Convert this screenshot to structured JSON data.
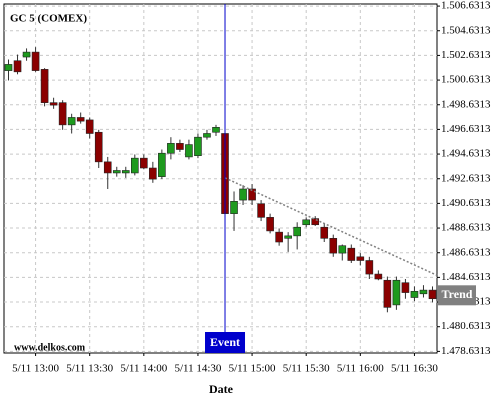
{
  "chart_data": {
    "type": "candlestick",
    "title": "GC 5 (COMEX)",
    "x_label": "Date",
    "watermark": "www.delkos.com",
    "categories": [
      null,
      null,
      null,
      "5/11 13:00",
      null,
      null,
      null,
      null,
      null,
      "5/11 13:30",
      null,
      null,
      null,
      null,
      null,
      "5/11 14:00",
      null,
      null,
      null,
      null,
      null,
      "5/11 14:30",
      null,
      null,
      null,
      null,
      null,
      "5/11 15:00",
      null,
      null,
      null,
      null,
      null,
      "5/11 15:30",
      null,
      null,
      null,
      null,
      null,
      "5/11 16:00",
      null,
      null,
      null,
      null,
      null,
      "5/11 16:30",
      null,
      null
    ],
    "open": [
      1501.4,
      1502.2,
      1502.5,
      1502.9,
      1501.5,
      1498.8,
      1498.8,
      1497.0,
      1497.6,
      1497.4,
      1496.4,
      1494.0,
      1493.1,
      1493.1,
      1493.1,
      1494.3,
      1493.5,
      1492.8,
      1494.7,
      1495.5,
      1494.4,
      1494.5,
      1496.0,
      1496.4,
      1496.3,
      1489.8,
      1490.9,
      1491.8,
      1490.6,
      1489.5,
      1488.3,
      1487.8,
      1488.0,
      1488.9,
      1489.4,
      1488.7,
      1487.8,
      1486.6,
      1487.0,
      1486.3,
      1486.0,
      1484.9,
      1484.4,
      1482.4,
      1484.2,
      1483.0,
      1483.3,
      1483.6
    ],
    "high": [
      1502.3,
      1502.7,
      1503.2,
      1503.3,
      1501.6,
      1499.2,
      1499.0,
      1497.9,
      1498.0,
      1497.6,
      1496.6,
      1494.4,
      1493.6,
      1493.6,
      1494.6,
      1494.6,
      1494.0,
      1495.0,
      1496.0,
      1495.8,
      1495.8,
      1496.3,
      1496.6,
      1497.0,
      1496.6,
      1491.6,
      1492.1,
      1492.2,
      1490.9,
      1489.8,
      1488.6,
      1488.3,
      1489.1,
      1489.5,
      1489.6,
      1489.0,
      1488.1,
      1487.3,
      1487.3,
      1486.6,
      1486.3,
      1485.2,
      1484.7,
      1484.7,
      1484.5,
      1483.9,
      1484.0,
      1483.9
    ],
    "low": [
      1500.6,
      1501.1,
      1502.2,
      1501.3,
      1498.5,
      1498.3,
      1496.6,
      1496.3,
      1497.1,
      1495.9,
      1493.5,
      1491.8,
      1492.8,
      1492.7,
      1492.9,
      1493.4,
      1492.3,
      1492.6,
      1494.2,
      1494.8,
      1494.2,
      1494.3,
      1495.8,
      1496.1,
      1489.5,
      1488.4,
      1490.5,
      1490.5,
      1489.2,
      1488.2,
      1487.2,
      1486.7,
      1486.9,
      1488.7,
      1488.8,
      1487.5,
      1486.3,
      1486.0,
      1485.8,
      1485.6,
      1484.5,
      1484.4,
      1481.8,
      1482.0,
      1482.9,
      1482.7,
      1483.0,
      1482.6
    ],
    "close": [
      1501.9,
      1501.3,
      1502.9,
      1501.4,
      1498.8,
      1498.6,
      1497.0,
      1497.6,
      1497.3,
      1496.3,
      1494.0,
      1493.1,
      1493.3,
      1493.3,
      1494.3,
      1493.5,
      1492.6,
      1494.7,
      1495.5,
      1495.0,
      1495.4,
      1496.0,
      1496.3,
      1496.8,
      1489.8,
      1490.8,
      1491.8,
      1490.9,
      1489.5,
      1488.4,
      1487.5,
      1488.0,
      1488.7,
      1489.3,
      1488.9,
      1487.8,
      1486.6,
      1487.2,
      1486.0,
      1486.0,
      1484.9,
      1484.5,
      1482.2,
      1484.4,
      1483.4,
      1483.5,
      1483.6,
      1482.9
    ],
    "up_color": "#1e9a1e",
    "down_color": "#8b0000",
    "ylim": [
      1478.5,
      1506.8
    ],
    "yticks": [
      {
        "value": 1478.6313,
        "label": "1.478.6313"
      },
      {
        "value": 1480.6313,
        "label": "1.480.6313"
      },
      {
        "value": 1482.6313,
        "label": "1.482.6313"
      },
      {
        "value": 1484.6313,
        "label": "1.484.6313"
      },
      {
        "value": 1486.6313,
        "label": "1.486.6313"
      },
      {
        "value": 1488.6313,
        "label": "1.488.6313"
      },
      {
        "value": 1490.6313,
        "label": "1.490.6313"
      },
      {
        "value": 1492.6313,
        "label": "1.492.6313"
      },
      {
        "value": 1494.6313,
        "label": "1.494.6313"
      },
      {
        "value": 1496.6313,
        "label": "1.496.6313"
      },
      {
        "value": 1498.6313,
        "label": "1.498.6313"
      },
      {
        "value": 1500.6313,
        "label": "1.500.6313"
      },
      {
        "value": 1502.6313,
        "label": "1.502.6313"
      },
      {
        "value": 1504.6313,
        "label": "1.504.6313"
      },
      {
        "value": 1506.6313,
        "label": "1.506.6313"
      }
    ],
    "grid": true,
    "event": {
      "label": "Event",
      "index": 24,
      "color": "#0000cc"
    },
    "trend": {
      "label": "Trend",
      "values": [
        1492.7,
        1484.8
      ],
      "color": "#808080"
    }
  }
}
